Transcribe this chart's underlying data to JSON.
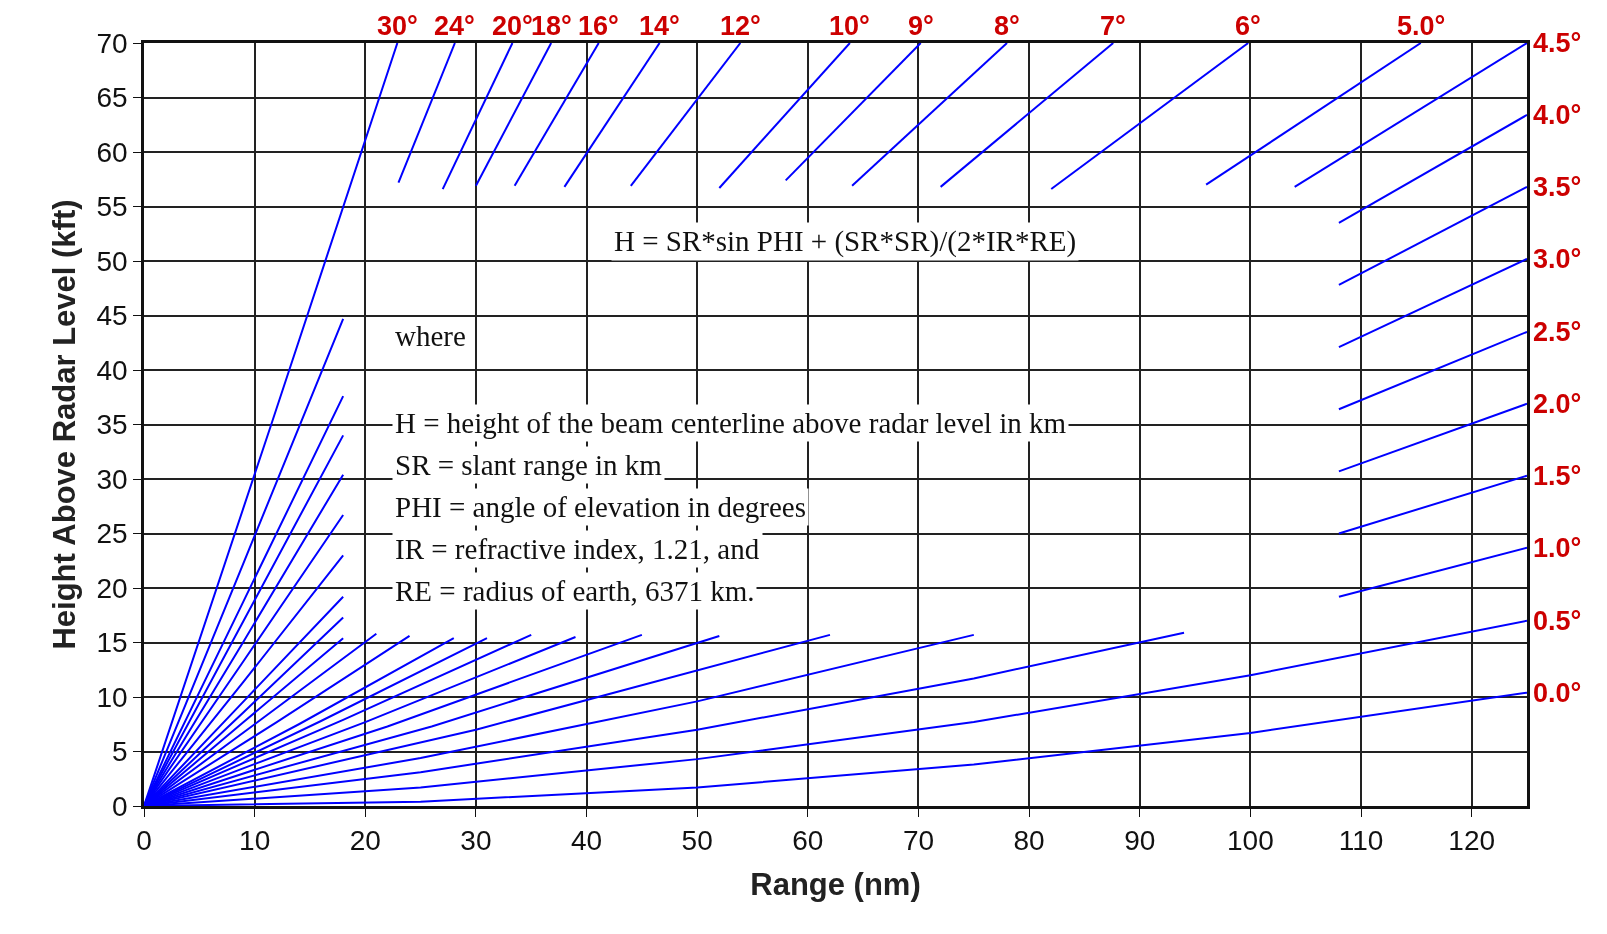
{
  "chart_data": {
    "type": "line",
    "xlabel": "Range (nm)",
    "ylabel": "Height Above Radar Level (kft)",
    "xlim": [
      0,
      125
    ],
    "xticks": [
      0,
      10,
      20,
      30,
      40,
      50,
      60,
      70,
      80,
      90,
      100,
      110,
      120
    ],
    "ylim": [
      0,
      70
    ],
    "yticks": [
      0,
      5,
      10,
      15,
      20,
      25,
      30,
      35,
      40,
      45,
      50,
      55,
      60,
      65,
      70
    ],
    "grid": true,
    "legend": false,
    "marker": "none",
    "line_style": "solid",
    "annotations": [
      "H = SR*sin PHI + (SR*SR)/(2*IR*RE)",
      "where",
      "H = height of the beam centerline above radar level in km",
      "SR = slant range in km",
      "PHI = angle of elevation in degrees",
      "IR = refractive index, 1.21, and",
      "RE = radius of earth, 6371 km."
    ],
    "series": [
      {
        "name": "0.0°",
        "color": "#0000ff",
        "x": [
          0,
          25,
          50,
          75,
          100,
          125
        ],
        "values": [
          0,
          0.4,
          1.7,
          3.8,
          6.7,
          10.4
        ]
      },
      {
        "name": "0.5°",
        "color": "#0000ff",
        "x": [
          0,
          25,
          50,
          75,
          100,
          125
        ],
        "values": [
          0,
          1.7,
          4.3,
          7.7,
          12.0,
          17.0
        ]
      },
      {
        "name": "1.0°",
        "color": "#0000ff",
        "x": [
          0,
          25,
          50,
          75,
          94,
          100,
          108,
          125
        ],
        "values": [
          0,
          3.1,
          7.0,
          11.7,
          15.9,
          null,
          19.2,
          23.7
        ]
      },
      {
        "name": "1.5°",
        "color": "#0000ff",
        "x": [
          0,
          25,
          50,
          75,
          90,
          108,
          125
        ],
        "values": [
          0,
          4.4,
          9.6,
          15.7,
          null,
          25.0,
          30.3
        ]
      },
      {
        "name": "2.0°",
        "color": "#0000ff",
        "x": [
          0,
          30,
          62,
          85,
          108,
          125
        ],
        "values": [
          0,
          7.0,
          15.7,
          null,
          30.7,
          36.9
        ]
      },
      {
        "name": "2.5°",
        "color": "#0000ff",
        "x": [
          0,
          26,
          52,
          80,
          108,
          125
        ],
        "values": [
          0,
          7.3,
          15.6,
          null,
          36.4,
          43.5
        ]
      },
      {
        "name": "3.0°",
        "color": "#0000ff",
        "x": [
          0,
          22,
          45,
          75,
          108,
          125
        ],
        "values": [
          0,
          7.3,
          15.7,
          null,
          42.1,
          50.2
        ]
      },
      {
        "name": "3.5°",
        "color": "#0000ff",
        "x": [
          0,
          20,
          39,
          70,
          108,
          125
        ],
        "values": [
          0,
          7.7,
          15.5,
          null,
          47.8,
          56.8
        ]
      },
      {
        "name": "4.0°",
        "color": "#0000ff",
        "x": [
          0,
          18,
          35,
          70,
          108,
          125
        ],
        "values": [
          0,
          7.9,
          15.7,
          null,
          53.5,
          63.4
        ]
      },
      {
        "name": "4.5°",
        "color": "#0000ff",
        "x": [
          0,
          16,
          31,
          65,
          104,
          125
        ],
        "values": [
          0,
          7.8,
          15.4,
          null,
          56.8,
          70.0
        ]
      },
      {
        "name": "5.0°",
        "color": "#0000ff",
        "x": [
          0,
          14,
          28,
          60,
          96,
          115.4
        ],
        "values": [
          0,
          7.5,
          15.4,
          null,
          57.0,
          70.0
        ]
      },
      {
        "name": "6°",
        "color": "#0000ff",
        "x": [
          0,
          12,
          24,
          50,
          82,
          99.8
        ],
        "values": [
          0,
          7.7,
          15.6,
          null,
          56.6,
          70.0
        ]
      },
      {
        "name": "7°",
        "color": "#0000ff",
        "x": [
          0,
          10,
          21,
          45,
          72,
          87.6
        ],
        "values": [
          0,
          7.5,
          15.8,
          null,
          56.8,
          70.0
        ]
      },
      {
        "name": "8°",
        "color": "#0000ff",
        "x": [
          0,
          9,
          18,
          40,
          64,
          78
        ],
        "values": [
          0,
          7.7,
          15.4,
          null,
          56.9,
          70.0
        ]
      },
      {
        "name": "9°",
        "color": "#0000ff",
        "x": [
          0,
          9,
          18,
          38,
          58,
          70.2
        ],
        "values": [
          0,
          8.6,
          17.3,
          null,
          57.4,
          70.0
        ]
      },
      {
        "name": "10°",
        "color": "#0000ff",
        "x": [
          0,
          9,
          18,
          35,
          52,
          63.8
        ],
        "values": [
          0,
          9.6,
          19.2,
          null,
          56.7,
          70.0
        ]
      },
      {
        "name": "12°",
        "color": "#0000ff",
        "x": [
          0,
          9,
          18,
          30,
          44,
          53.9
        ],
        "values": [
          0,
          11.4,
          23.0,
          null,
          56.9,
          70.0
        ]
      },
      {
        "name": "14°",
        "color": "#0000ff",
        "x": [
          0,
          9,
          18,
          28,
          38,
          46.6
        ],
        "values": [
          0,
          13.3,
          26.7,
          null,
          56.8,
          70.0
        ]
      },
      {
        "name": "16°",
        "color": "#0000ff",
        "x": [
          0,
          9,
          18,
          25,
          33.5,
          41.1
        ],
        "values": [
          0,
          15.1,
          30.4,
          null,
          56.9,
          70.0
        ]
      },
      {
        "name": "18°",
        "color": "#0000ff",
        "x": [
          0,
          9,
          18,
          24,
          30,
          36.8
        ],
        "values": [
          0,
          17.0,
          34.0,
          null,
          56.9,
          70.0
        ]
      },
      {
        "name": "20°",
        "color": "#0000ff",
        "x": [
          0,
          9,
          18,
          22.5,
          27,
          33.3
        ],
        "values": [
          0,
          18.8,
          37.6,
          null,
          56.6,
          70.0
        ]
      },
      {
        "name": "24°",
        "color": "#0000ff",
        "x": [
          0,
          9,
          18,
          20.5,
          23,
          28.1
        ],
        "values": [
          0,
          22.3,
          44.7,
          null,
          57.2,
          70.0
        ]
      },
      {
        "name": "30°",
        "color": "#0000ff",
        "x": [
          0,
          11.5,
          22.9
        ],
        "values": [
          0,
          35.0,
          70.0
        ]
      }
    ]
  }
}
